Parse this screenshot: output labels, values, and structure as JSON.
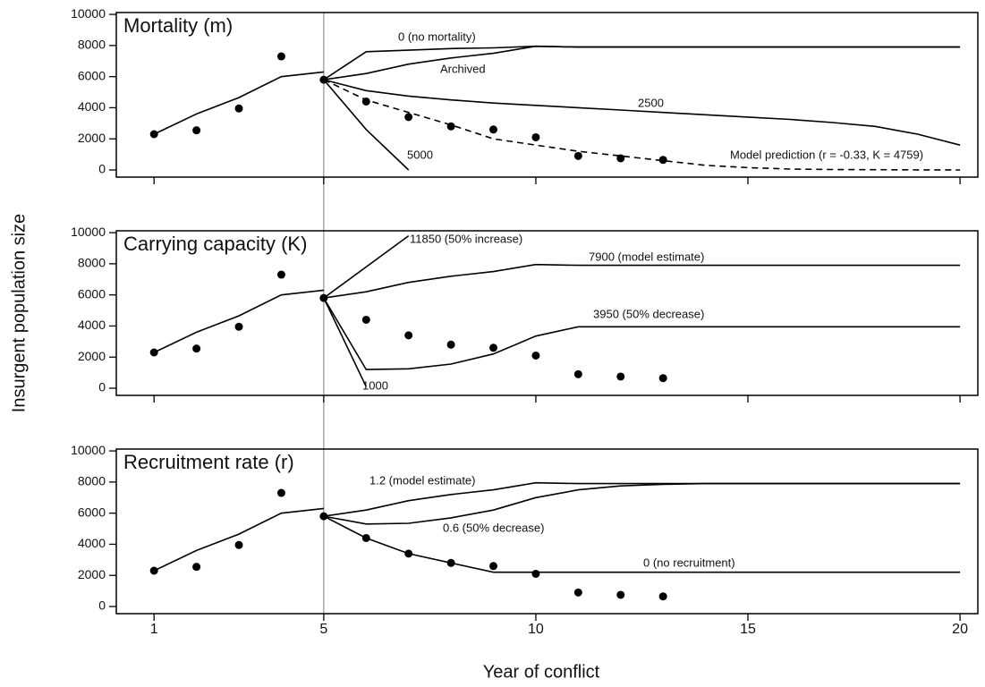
{
  "chart_data": [
    {
      "type": "line",
      "title": "Mortality (m)",
      "xlim": [
        0.11,
        20.42
      ],
      "xticks": [
        1,
        5,
        10,
        15,
        20
      ],
      "ylim": [
        -460,
        10120
      ],
      "yticks": [
        0,
        2000,
        4000,
        6000,
        8000,
        10000
      ],
      "vline": 5,
      "color": "#000000",
      "points": {
        "x": [
          1,
          2,
          3,
          4,
          5,
          6,
          7,
          8,
          9,
          10,
          11,
          12,
          13
        ],
        "values": [
          2300,
          2550,
          3950,
          7300,
          5800,
          4400,
          3400,
          2800,
          2600,
          2100,
          900,
          750,
          650
        ]
      },
      "series": [
        {
          "x": [
            1,
            2,
            3,
            4,
            5
          ],
          "values": [
            2300,
            3600,
            4650,
            6000,
            6300
          ]
        },
        {
          "name": "0 (no mortality)",
          "x": [
            5,
            6,
            7,
            8,
            9,
            10,
            11,
            12,
            13,
            14,
            15,
            16,
            17,
            18,
            19,
            20
          ],
          "values": [
            5800,
            7600,
            7700,
            7800,
            7850,
            7950,
            7900,
            7900,
            7900,
            7900,
            7900,
            7900,
            7900,
            7900,
            7900,
            7900
          ]
        },
        {
          "name": "Archived",
          "x": [
            5,
            6,
            7,
            8,
            9,
            10,
            11,
            12,
            13,
            14,
            15,
            16,
            17,
            18,
            19,
            20
          ],
          "values": [
            5800,
            6200,
            6800,
            7200,
            7500,
            7950,
            7900,
            7900,
            7900,
            7900,
            7900,
            7900,
            7900,
            7900,
            7900,
            7900
          ]
        },
        {
          "name": "2500",
          "x": [
            5,
            6,
            7,
            8,
            9,
            10,
            11,
            12,
            13,
            14,
            15,
            16,
            17,
            18,
            19,
            20
          ],
          "values": [
            5800,
            5100,
            4750,
            4500,
            4300,
            4150,
            4000,
            3850,
            3700,
            3550,
            3400,
            3250,
            3050,
            2800,
            2300,
            1600
          ]
        },
        {
          "name": "5000",
          "x": [
            5,
            6,
            7
          ],
          "values": [
            5800,
            2600,
            0
          ]
        },
        {
          "name": "Model prediction (r = -0.33, K = 4759)",
          "style": "dashed",
          "x": [
            5,
            6,
            7,
            8,
            9,
            10,
            11,
            12,
            13,
            14,
            15,
            16,
            17,
            18,
            19,
            20
          ],
          "values": [
            5800,
            4500,
            3700,
            2900,
            2000,
            1600,
            1200,
            900,
            600,
            300,
            150,
            60,
            30,
            15,
            5,
            0
          ]
        }
      ]
    },
    {
      "type": "line",
      "title": "Carrying capacity (K)",
      "ylabel": "Insurgent population size",
      "xlim": [
        0.11,
        20.42
      ],
      "xticks": [
        1,
        5,
        10,
        15,
        20
      ],
      "ylim": [
        -460,
        10120
      ],
      "yticks": [
        0,
        2000,
        4000,
        6000,
        8000,
        10000
      ],
      "vline": 5,
      "color": "#000000",
      "points": {
        "x": [
          1,
          2,
          3,
          4,
          5,
          6,
          7,
          8,
          9,
          10,
          11,
          12,
          13
        ],
        "values": [
          2300,
          2550,
          3950,
          7300,
          5800,
          4400,
          3400,
          2800,
          2600,
          2100,
          900,
          750,
          650
        ]
      },
      "series": [
        {
          "x": [
            1,
            2,
            3,
            4,
            5
          ],
          "values": [
            2300,
            3600,
            4650,
            6000,
            6300
          ]
        },
        {
          "name": "11850 (50% increase)",
          "x": [
            5,
            7
          ],
          "values": [
            5800,
            9800
          ]
        },
        {
          "name": "7900 (model estimate)",
          "x": [
            5,
            6,
            7,
            8,
            9,
            10,
            11,
            12,
            13,
            14,
            15,
            16,
            17,
            18,
            19,
            20
          ],
          "values": [
            5800,
            6200,
            6800,
            7200,
            7500,
            7950,
            7900,
            7900,
            7900,
            7900,
            7900,
            7900,
            7900,
            7900,
            7900,
            7900
          ]
        },
        {
          "name": "3950 (50% decrease)",
          "x": [
            5,
            6,
            7,
            8,
            9,
            10,
            11,
            12,
            13,
            14,
            15,
            16,
            17,
            18,
            19,
            20
          ],
          "values": [
            5800,
            1200,
            1250,
            1550,
            2200,
            3350,
            3950,
            3950,
            3950,
            3950,
            3950,
            3950,
            3950,
            3950,
            3950,
            3950
          ]
        },
        {
          "name": "1000",
          "x": [
            5,
            6
          ],
          "values": [
            5800,
            100
          ]
        }
      ]
    },
    {
      "type": "line",
      "title": "Recruitment rate (r)",
      "xlabel": "Year of conflict",
      "xlim": [
        0.11,
        20.42
      ],
      "xticks": [
        1,
        5,
        10,
        15,
        20
      ],
      "ylim": [
        -460,
        10120
      ],
      "yticks": [
        0,
        2000,
        4000,
        6000,
        8000,
        10000
      ],
      "vline": 5,
      "color": "#000000",
      "points": {
        "x": [
          1,
          2,
          3,
          4,
          5,
          6,
          7,
          8,
          9,
          10,
          11,
          12,
          13
        ],
        "values": [
          2300,
          2550,
          3950,
          7300,
          5800,
          4400,
          3400,
          2800,
          2600,
          2100,
          900,
          750,
          650
        ]
      },
      "series": [
        {
          "x": [
            1,
            2,
            3,
            4,
            5
          ],
          "values": [
            2300,
            3600,
            4650,
            6000,
            6300
          ]
        },
        {
          "name": "1.2 (model estimate)",
          "x": [
            5,
            6,
            7,
            8,
            9,
            10,
            11,
            12,
            13,
            14,
            15,
            16,
            17,
            18,
            19,
            20
          ],
          "values": [
            5800,
            6200,
            6800,
            7200,
            7500,
            7950,
            7900,
            7900,
            7900,
            7900,
            7900,
            7900,
            7900,
            7900,
            7900,
            7900
          ]
        },
        {
          "name": "0.6 (50% decrease)",
          "x": [
            5,
            6,
            7,
            8,
            9,
            10,
            11,
            12,
            13,
            14,
            15,
            16,
            17,
            18,
            19,
            20
          ],
          "values": [
            5800,
            5300,
            5350,
            5700,
            6200,
            7000,
            7500,
            7750,
            7850,
            7900,
            7900,
            7900,
            7900,
            7900,
            7900,
            7900
          ]
        },
        {
          "name": "0 (no recruitment)",
          "x": [
            5,
            6,
            7,
            8,
            9,
            10,
            11,
            12,
            13,
            14,
            15,
            16,
            17,
            18,
            19,
            20
          ],
          "values": [
            5800,
            4400,
            3400,
            2800,
            2200,
            2200,
            2200,
            2200,
            2200,
            2200,
            2200,
            2200,
            2200,
            2200,
            2200,
            2200
          ]
        }
      ]
    }
  ]
}
